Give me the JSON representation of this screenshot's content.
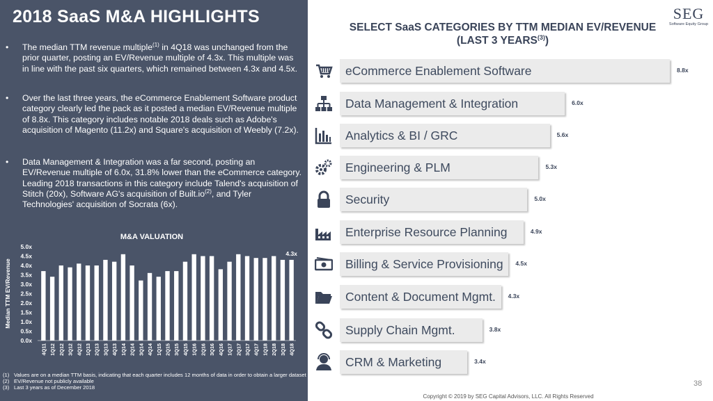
{
  "left": {
    "title": "2018 SaaS M&A HIGHLIGHTS",
    "bullet_symbol": "•",
    "bullets": [
      {
        "pre": "The median TTM revenue multiple",
        "sup": "(1)",
        "post": " in 4Q18 was unchanged from the prior quarter, posting an EV/Revenue multiple of 4.3x. This multiple was in line with the past six quarters, which remained between 4.3x and 4.5x."
      },
      {
        "pre": "Over the last three years, the eCommerce Enablement Software product category clearly led the pack as it posted a median EV/Revenue multiple of 8.8x. This category includes notable 2018 deals such as Adobe's acquisition of Magento (11.2x) and Square's acquisition of Weebly (7.2x).",
        "sup": "",
        "post": ""
      },
      {
        "pre": "Data Management & Integration was a far second, posting an EV/Revenue multiple of 6.0x, 31.8% lower than the eCommerce category. Leading 2018 transactions in this category include Talend's acquisition of Stitch (20x), Software AG's acquisition of Built.io",
        "sup": "(2)",
        "post": ", and Tyler Technologies' acquisition of Socrata (6x)."
      }
    ],
    "footnotes": [
      {
        "num": "(1)",
        "text": "Values are on a median TTM basis, indicating that each quarter includes 12 months of data in order to obtain a larger dataset"
      },
      {
        "num": "(2)",
        "text": "EV/Revenue not publicly available"
      },
      {
        "num": "(3)",
        "text": "Last 3 years as of December 2018"
      }
    ]
  },
  "right": {
    "title_line1": "SELECT SaaS CATEGORIES BY TTM MEDIAN EV/REVENUE",
    "title_line2": "(LAST 3 YEARS",
    "title_sup": "(3)",
    "title_close": ")"
  },
  "logo": {
    "big": "SEG",
    "small": "Software Equity Group"
  },
  "footer": {
    "page": "38",
    "copyright": "Copyright © 2019 by SEG Capital Advisors, LLC. All Rights Reserved"
  },
  "colors": {
    "panel": "#4a5468",
    "bar_white": "#ffffff",
    "category_bar": "#ebebeb",
    "text_dark": "#3a4459"
  },
  "chart_data": [
    {
      "type": "bar",
      "title": "M&A VALUATION",
      "ylabel": "Median TTM EV/Revenue",
      "xlabel": "",
      "ylim": [
        0,
        5.0
      ],
      "yticks": [
        "0.0x",
        "0.5x",
        "1.0x",
        "1.5x",
        "2.0x",
        "2.5x",
        "3.0x",
        "3.5x",
        "4.0x",
        "4.5x",
        "5.0x"
      ],
      "categories": [
        "4Q11",
        "1Q12",
        "2Q12",
        "3Q12",
        "4Q12",
        "1Q13",
        "2Q13",
        "3Q13",
        "4Q13",
        "1Q14",
        "2Q14",
        "3Q14",
        "4Q14",
        "1Q15",
        "2Q15",
        "3Q15",
        "4Q15",
        "1Q16",
        "2Q16",
        "3Q16",
        "4Q16",
        "1Q17",
        "2Q17",
        "3Q17",
        "4Q17",
        "1Q18",
        "2Q18",
        "3Q18",
        "4Q18"
      ],
      "values": [
        3.7,
        3.4,
        4.0,
        3.9,
        4.1,
        4.0,
        4.0,
        4.3,
        4.2,
        4.6,
        4.0,
        3.2,
        3.6,
        3.4,
        3.7,
        3.7,
        4.2,
        4.6,
        4.5,
        4.5,
        3.8,
        4.2,
        4.6,
        4.5,
        4.4,
        4.4,
        4.5,
        4.3,
        4.3
      ],
      "annotation": {
        "category": "4Q18",
        "text": "4.3x"
      }
    },
    {
      "type": "bar",
      "orientation": "horizontal",
      "title": "SELECT SaaS CATEGORIES BY TTM MEDIAN EV/REVENUE (LAST 3 YEARS)(3)",
      "categories": [
        "eCommerce Enablement Software",
        "Data Management & Integration",
        "Analytics & BI / GRC",
        "Engineering & PLM",
        "Security",
        "Enterprise Resource Planning",
        "Billing & Service Provisioning",
        "Content & Document Mgmt.",
        "Supply Chain Mgmt.",
        "CRM & Marketing"
      ],
      "values": [
        8.8,
        6.0,
        5.6,
        5.3,
        5.0,
        4.9,
        4.5,
        4.3,
        3.8,
        3.4
      ],
      "value_labels": [
        "8.8x",
        "6.0x",
        "5.6x",
        "5.3x",
        "5.0x",
        "4.9x",
        "4.5x",
        "4.3x",
        "3.8x",
        "3.4x"
      ],
      "icons": [
        "shopping-cart-icon",
        "hierarchy-icon",
        "bar-chart-icon",
        "gears-icon",
        "lock-icon",
        "factory-icon",
        "cash-register-icon",
        "folder-icon",
        "chain-link-icon",
        "headset-person-icon"
      ],
      "max_value": 8.8
    }
  ]
}
